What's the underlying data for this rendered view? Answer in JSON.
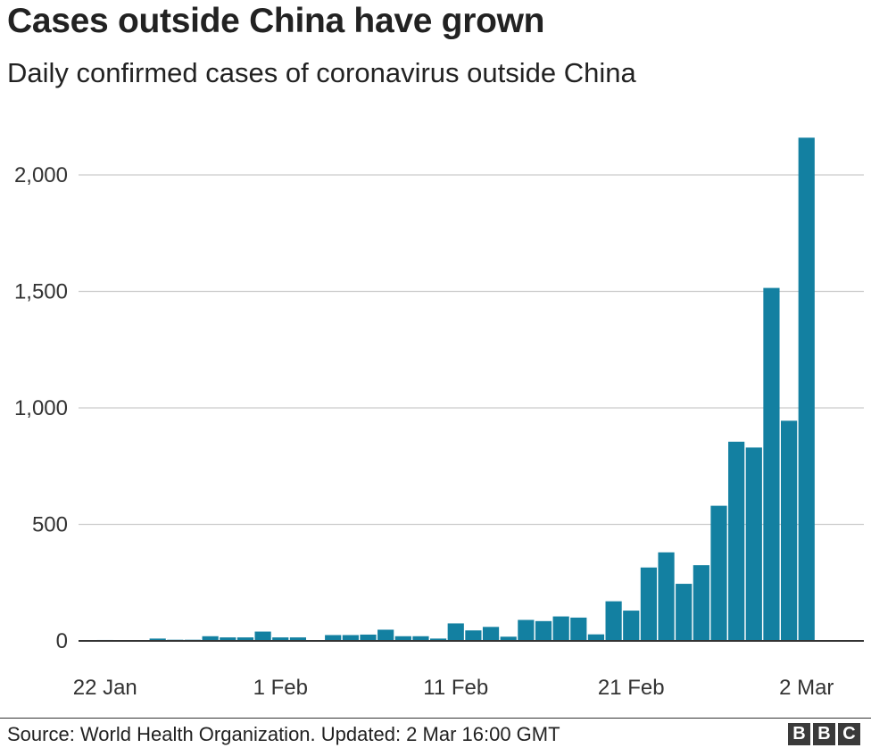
{
  "title": "Cases outside China have grown",
  "subtitle": "Daily confirmed cases of coronavirus outside China",
  "source": "Source: World Health Organization. Updated: 2 Mar 16:00 GMT",
  "logo": {
    "letters": [
      "B",
      "B",
      "C"
    ]
  },
  "colors": {
    "bar": "#1380a1",
    "grid": "#cccccc",
    "axis": "#333333"
  },
  "chart_data": {
    "type": "bar",
    "title": "Cases outside China have grown",
    "subtitle": "Daily confirmed cases of coronavirus outside China",
    "xlabel": "",
    "ylabel": "",
    "ylim": [
      0,
      2250
    ],
    "grid": true,
    "y_ticks": [
      0,
      500,
      1000,
      1500,
      2000
    ],
    "y_tick_labels": [
      "0",
      "500",
      "1,000",
      "1,500",
      "2,000"
    ],
    "x_tick_labels": [
      {
        "label": "22 Jan",
        "index": 1
      },
      {
        "label": "1 Feb",
        "index": 11
      },
      {
        "label": "11 Feb",
        "index": 21
      },
      {
        "label": "21 Feb",
        "index": 31
      },
      {
        "label": "2 Mar",
        "index": 41
      }
    ],
    "categories": [
      "21 Jan",
      "22 Jan",
      "23 Jan",
      "24 Jan",
      "25 Jan",
      "26 Jan",
      "27 Jan",
      "28 Jan",
      "29 Jan",
      "30 Jan",
      "31 Jan",
      "1 Feb",
      "2 Feb",
      "3 Feb",
      "4 Feb",
      "5 Feb",
      "6 Feb",
      "7 Feb",
      "8 Feb",
      "9 Feb",
      "10 Feb",
      "11 Feb",
      "12 Feb",
      "13 Feb",
      "14 Feb",
      "15 Feb",
      "16 Feb",
      "17 Feb",
      "18 Feb",
      "19 Feb",
      "20 Feb",
      "21 Feb",
      "22 Feb",
      "23 Feb",
      "24 Feb",
      "25 Feb",
      "26 Feb",
      "27 Feb",
      "28 Feb",
      "29 Feb",
      "1 Mar",
      "2 Mar"
    ],
    "values": [
      3,
      4,
      3,
      2,
      10,
      5,
      5,
      20,
      15,
      15,
      40,
      15,
      15,
      2,
      25,
      25,
      27,
      48,
      20,
      20,
      10,
      75,
      45,
      60,
      18,
      90,
      85,
      105,
      100,
      28,
      170,
      130,
      315,
      380,
      245,
      325,
      580,
      855,
      830,
      1515,
      945,
      2160
    ]
  }
}
